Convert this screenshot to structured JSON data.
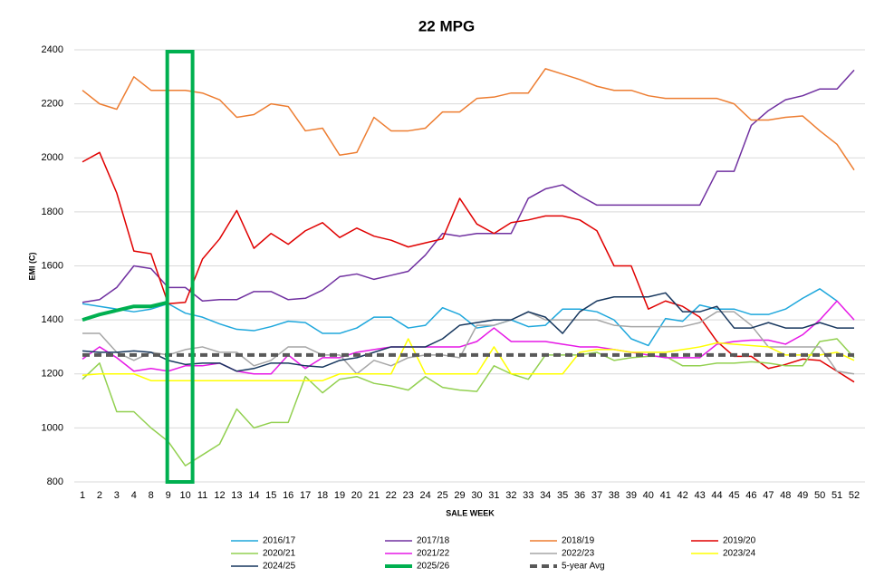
{
  "chart_data": {
    "type": "line",
    "title": "22 MPG",
    "x_label": "SALE WEEK",
    "y_label": "EMI (C)",
    "categories": [
      "1",
      "2",
      "3",
      "4",
      "8",
      "9",
      "10",
      "11",
      "12",
      "13",
      "14",
      "15",
      "16",
      "17",
      "18",
      "19",
      "20",
      "21",
      "22",
      "23",
      "24",
      "25",
      "29",
      "30",
      "31",
      "32",
      "33",
      "34",
      "35",
      "36",
      "37",
      "38",
      "39",
      "40",
      "41",
      "42",
      "43",
      "44",
      "45",
      "46",
      "47",
      "48",
      "49",
      "50",
      "51",
      "52"
    ],
    "ylim": [
      800,
      2400
    ],
    "yticks": [
      800,
      1000,
      1200,
      1400,
      1600,
      1800,
      2000,
      2200,
      2400
    ],
    "grid": true,
    "series": [
      {
        "name": "2016/17",
        "color": "#1ea7dc",
        "width": 1.5,
        "values": [
          1460,
          1450,
          1440,
          1430,
          1440,
          1460,
          1425,
          1410,
          1385,
          1365,
          1360,
          1375,
          1395,
          1390,
          1350,
          1350,
          1370,
          1410,
          1410,
          1370,
          1380,
          1445,
          1420,
          1370,
          1380,
          1400,
          1375,
          1380,
          1440,
          1440,
          1430,
          1400,
          1330,
          1305,
          1405,
          1395,
          1455,
          1440,
          1440,
          1420,
          1420,
          1440,
          1480,
          1515,
          1470,
          null
        ]
      },
      {
        "name": "2017/18",
        "color": "#7030a0",
        "width": 1.5,
        "values": [
          1465,
          1475,
          1520,
          1600,
          1590,
          1520,
          1520,
          1470,
          1475,
          1475,
          1505,
          1505,
          1475,
          1480,
          1510,
          1560,
          1570,
          1550,
          1565,
          1580,
          1640,
          1720,
          1710,
          1720,
          1720,
          1720,
          1850,
          1885,
          1900,
          1860,
          1825,
          1825,
          1825,
          1825,
          1825,
          1825,
          1825,
          1950,
          1950,
          2120,
          2175,
          2215,
          2230,
          2255,
          2255,
          2325
        ]
      },
      {
        "name": "2018/19",
        "color": "#ed7d31",
        "width": 1.5,
        "values": [
          2250,
          2200,
          2180,
          2300,
          2250,
          2250,
          2250,
          2240,
          2215,
          2150,
          2160,
          2200,
          2190,
          2100,
          2110,
          2010,
          2020,
          2150,
          2100,
          2100,
          2110,
          2170,
          2170,
          2220,
          2225,
          2240,
          2240,
          2330,
          2310,
          2290,
          2265,
          2250,
          2250,
          2230,
          2220,
          2220,
          2220,
          2220,
          2200,
          2140,
          2140,
          2150,
          2155,
          2100,
          2050,
          1955
        ]
      },
      {
        "name": "2019/20",
        "color": "#e00000",
        "width": 1.5,
        "values": [
          1985,
          2020,
          1870,
          1655,
          1645,
          1460,
          1465,
          1625,
          1700,
          1805,
          1665,
          1720,
          1680,
          1730,
          1760,
          1705,
          1740,
          1710,
          1695,
          1670,
          1685,
          1700,
          1850,
          1755,
          1720,
          1760,
          1770,
          1785,
          1785,
          1770,
          1730,
          1600,
          1600,
          1440,
          1470,
          1450,
          1410,
          1320,
          1265,
          1265,
          1220,
          1235,
          1255,
          1250,
          1210,
          1170
        ]
      },
      {
        "name": "2020/21",
        "color": "#92d050",
        "width": 1.5,
        "values": [
          1180,
          1240,
          1060,
          1060,
          1000,
          950,
          860,
          900,
          940,
          1070,
          1000,
          1020,
          1020,
          1190,
          1130,
          1180,
          1190,
          1165,
          1155,
          1140,
          1190,
          1150,
          1140,
          1135,
          1230,
          1200,
          1180,
          1270,
          1270,
          1270,
          1280,
          1250,
          1260,
          1265,
          1265,
          1230,
          1230,
          1240,
          1240,
          1245,
          1240,
          1230,
          1230,
          1320,
          1330,
          1260
        ]
      },
      {
        "name": "2021/22",
        "color": "#e619e6",
        "width": 1.5,
        "values": [
          1255,
          1300,
          1260,
          1210,
          1220,
          1210,
          1230,
          1230,
          1240,
          1210,
          1200,
          1200,
          1270,
          1220,
          1260,
          1260,
          1280,
          1290,
          1300,
          1300,
          1300,
          1300,
          1300,
          1320,
          1370,
          1320,
          1320,
          1320,
          1310,
          1300,
          1300,
          1290,
          1280,
          1270,
          1260,
          1260,
          1260,
          1310,
          1320,
          1325,
          1325,
          1310,
          1345,
          1400,
          1470,
          1400
        ]
      },
      {
        "name": "2022/23",
        "color": "#a6a6a6",
        "width": 1.5,
        "values": [
          1350,
          1350,
          1280,
          1250,
          1280,
          1270,
          1290,
          1300,
          1280,
          1280,
          1230,
          1250,
          1300,
          1300,
          1270,
          1270,
          1200,
          1250,
          1230,
          1260,
          1270,
          1270,
          1260,
          1380,
          1380,
          1400,
          1430,
          1400,
          1400,
          1400,
          1400,
          1380,
          1375,
          1375,
          1375,
          1375,
          1390,
          1430,
          1430,
          1380,
          1300,
          1300,
          1300,
          1300,
          1210,
          1200
        ]
      },
      {
        "name": "2023/24",
        "color": "#ffff00",
        "width": 1.5,
        "values": [
          1195,
          1200,
          1200,
          1200,
          1175,
          1175,
          1175,
          1175,
          1175,
          1175,
          1175,
          1175,
          1175,
          1175,
          1175,
          1200,
          1200,
          1200,
          1200,
          1330,
          1200,
          1200,
          1200,
          1200,
          1300,
          1200,
          1200,
          1200,
          1200,
          1280,
          1290,
          1290,
          1280,
          1280,
          1280,
          1290,
          1300,
          1315,
          1310,
          1305,
          1300,
          1270,
          1270,
          1270,
          1280,
          1250
        ]
      },
      {
        "name": "2024/25",
        "color": "#17375e",
        "width": 1.5,
        "values": [
          1285,
          1280,
          1280,
          1285,
          1280,
          1250,
          1235,
          1240,
          1240,
          1210,
          1220,
          1240,
          1240,
          1230,
          1225,
          1250,
          1260,
          1280,
          1300,
          1300,
          1300,
          1330,
          1380,
          1390,
          1400,
          1400,
          1430,
          1410,
          1350,
          1430,
          1470,
          1485,
          1485,
          1485,
          1500,
          1430,
          1430,
          1450,
          1370,
          1370,
          1390,
          1370,
          1370,
          1390,
          1370,
          1370
        ]
      },
      {
        "name": "2025/26",
        "color": "#00b050",
        "width": 4,
        "values": [
          1400,
          1420,
          1435,
          1450,
          1450,
          1465,
          null,
          null,
          null,
          null,
          null,
          null,
          null,
          null,
          null,
          null,
          null,
          null,
          null,
          null,
          null,
          null,
          null,
          null,
          null,
          null,
          null,
          null,
          null,
          null,
          null,
          null,
          null,
          null,
          null,
          null,
          null,
          null,
          null,
          null,
          null,
          null,
          null,
          null,
          null,
          null
        ]
      },
      {
        "name": "5-year Avg",
        "color": "#595959",
        "width": 4,
        "dash": true,
        "values": [
          1270,
          1270,
          1270,
          1270,
          1270,
          1270,
          1270,
          1270,
          1270,
          1270,
          1270,
          1270,
          1270,
          1270,
          1270,
          1270,
          1270,
          1270,
          1270,
          1270,
          1270,
          1270,
          1270,
          1270,
          1270,
          1270,
          1270,
          1270,
          1270,
          1270,
          1270,
          1270,
          1270,
          1270,
          1270,
          1270,
          1270,
          1270,
          1270,
          1270,
          1270,
          1270,
          1270,
          1270,
          1270,
          1270
        ]
      }
    ]
  }
}
